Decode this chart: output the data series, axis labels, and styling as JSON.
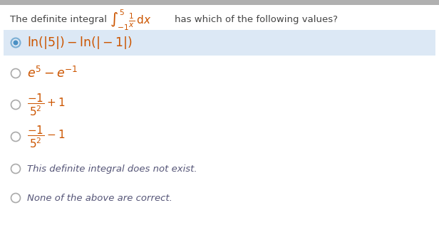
{
  "background_color": "#ffffff",
  "top_bar_color": "#b0b0b0",
  "selected_bg_color": "#dce8f5",
  "question_prefix": "The definite integral",
  "question_suffix": "has which of the following values?",
  "integral_str": "$\\int_{-1}^{5} \\frac{1}{x}\\,\\mathrm{d}x$",
  "options": [
    {
      "text_parts": [
        {
          "t": "ln(|5|) – ln(|−1|)",
          "math": true
        }
      ],
      "selected": true
    },
    {
      "text_parts": [
        {
          "t": "$e^5 - e^{-1}$",
          "math": true
        }
      ],
      "selected": false
    },
    {
      "text_parts": [
        {
          "t": "$\\frac{-1}{5^2} + 1$",
          "math": true
        }
      ],
      "selected": false
    },
    {
      "text_parts": [
        {
          "t": "$\\frac{-1}{5^2} - 1$",
          "math": true
        }
      ],
      "selected": false
    },
    {
      "text_parts": [
        {
          "t": "This definite integral does not exist.",
          "math": false
        }
      ],
      "selected": false
    },
    {
      "text_parts": [
        {
          "t": "None of the above are correct.",
          "math": false
        }
      ],
      "selected": false
    }
  ],
  "text_color": "#444444",
  "math_option_color": "#cc5500",
  "plain_option_color": "#555577",
  "integral_color": "#cc5500",
  "radio_unselected_color": "#aaaaaa",
  "radio_selected_outer": "#7bafd4",
  "radio_selected_inner": "#4a90c4",
  "figwidth": 6.16,
  "figheight": 3.23,
  "dpi": 100
}
